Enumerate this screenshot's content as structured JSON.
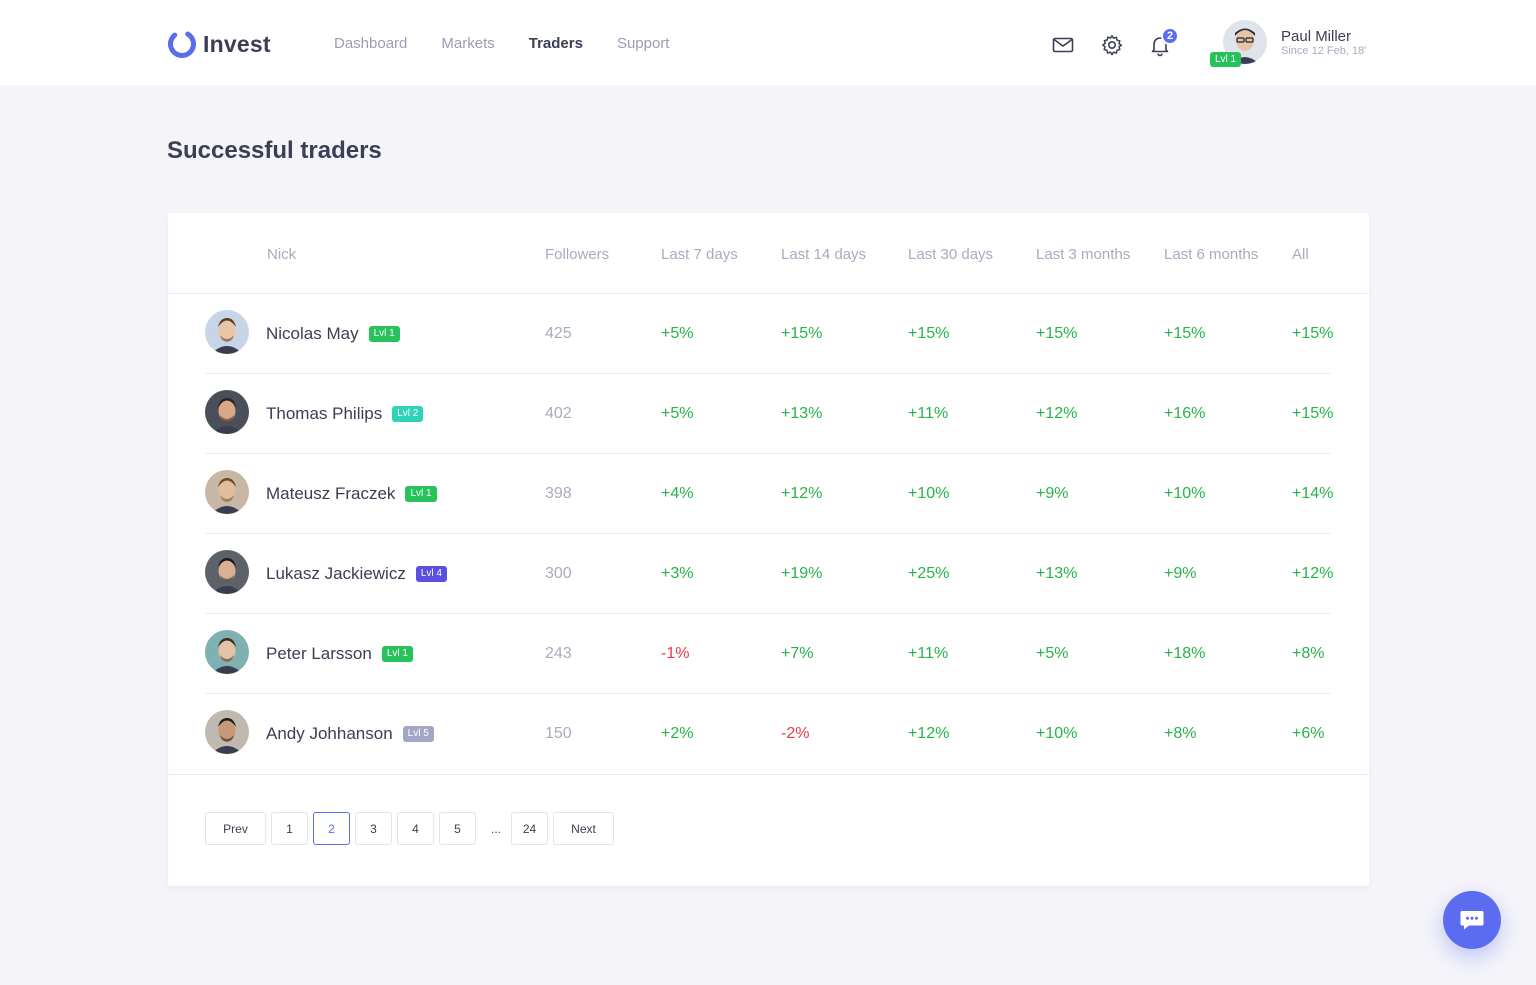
{
  "app": {
    "name": "Invest",
    "brand_color": "#5b6cf0"
  },
  "nav": [
    {
      "label": "Dashboard",
      "active": false
    },
    {
      "label": "Markets",
      "active": false
    },
    {
      "label": "Traders",
      "active": true
    },
    {
      "label": "Support",
      "active": false
    }
  ],
  "header": {
    "icons": [
      "mail-icon",
      "gear-icon",
      "bell-icon"
    ],
    "notification_count": "2",
    "user": {
      "name": "Paul Miller",
      "since": "Since 12 Feb, 18'",
      "level": "Lvl 1"
    }
  },
  "page": {
    "title": "Successful traders"
  },
  "table": {
    "columns": [
      "Nick",
      "Followers",
      "Last 7 days",
      "Last 14 days",
      "Last 30 days",
      "Last 3 months",
      "Last 6 months",
      "All"
    ],
    "rows": [
      {
        "nick": "Nicolas May",
        "level": "Lvl 1",
        "level_color": "#28c25d",
        "followers": "425",
        "d7": "+5%",
        "d14": "+15%",
        "d30": "+15%",
        "m3": "+15%",
        "m6": "+15%",
        "all": "+15%"
      },
      {
        "nick": "Thomas Philips",
        "level": "Lvl 2",
        "level_color": "#2fd3b9",
        "followers": "402",
        "d7": "+5%",
        "d14": "+13%",
        "d30": "+11%",
        "m3": "+12%",
        "m6": "+16%",
        "all": "+15%"
      },
      {
        "nick": "Mateusz Fraczek",
        "level": "Lvl 1",
        "level_color": "#28c25d",
        "followers": "398",
        "d7": "+4%",
        "d14": "+12%",
        "d30": "+10%",
        "m3": "+9%",
        "m6": "+10%",
        "all": "+14%"
      },
      {
        "nick": "Lukasz Jackiewicz",
        "level": "Lvl 4",
        "level_color": "#5b4fe0",
        "followers": "300",
        "d7": "+3%",
        "d14": "+19%",
        "d30": "+25%",
        "m3": "+13%",
        "m6": "+9%",
        "all": "+12%"
      },
      {
        "nick": "Peter Larsson",
        "level": "Lvl 1",
        "level_color": "#28c25d",
        "followers": "243",
        "d7": "-1%",
        "d14": "+7%",
        "d30": "+11%",
        "m3": "+5%",
        "m6": "+18%",
        "all": "+8%"
      },
      {
        "nick": "Andy Johhanson",
        "level": "Lvl 5",
        "level_color": "#a3a6c4",
        "followers": "150",
        "d7": "+2%",
        "d14": "-2%",
        "d30": "+12%",
        "m3": "+10%",
        "m6": "+8%",
        "all": "+6%"
      }
    ]
  },
  "pagination": {
    "prev": "Prev",
    "next": "Next",
    "pages": [
      "1",
      "2",
      "3",
      "4",
      "5"
    ],
    "ellipsis": "...",
    "last": "24",
    "current": "2"
  },
  "chat": {
    "icon": "chat-icon"
  }
}
